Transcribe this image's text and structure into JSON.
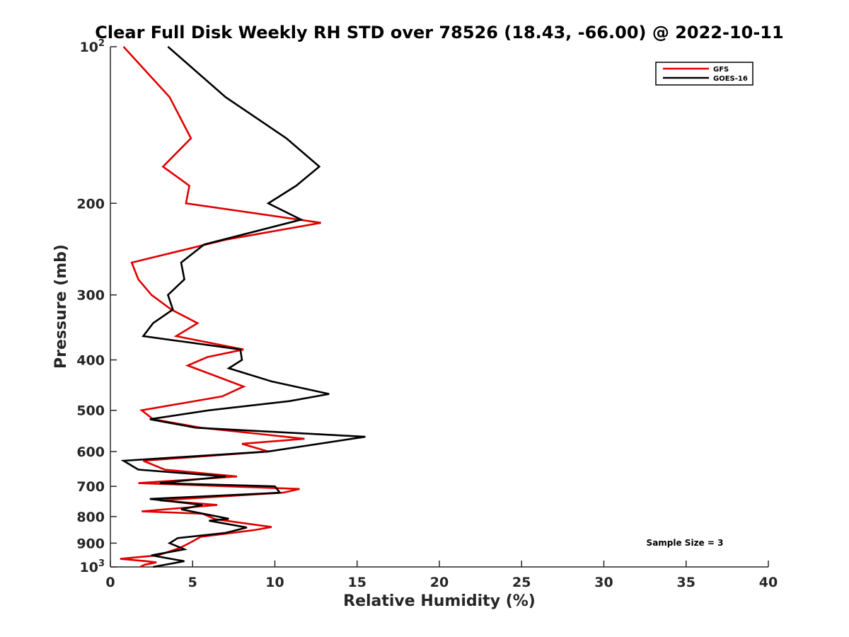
{
  "chart_data": {
    "type": "line",
    "title": "Clear Full Disk Weekly RH STD over 78526 (18.43, -66.00) @ 2022-10-11",
    "xlabel": "Relative Humidity (%)",
    "ylabel": "Pressure (mb)",
    "xlim": [
      0,
      40
    ],
    "ylim": [
      100,
      1000
    ],
    "y_scale": "log",
    "y_reversed": true,
    "grid": false,
    "legend_position": "top-right",
    "x_ticks": [
      0,
      5,
      10,
      15,
      20,
      25,
      30,
      35,
      40
    ],
    "y_ticks": [
      {
        "value": 100,
        "label": "10",
        "exp": "2"
      },
      {
        "value": 200,
        "label": "200"
      },
      {
        "value": 300,
        "label": "300"
      },
      {
        "value": 400,
        "label": "400"
      },
      {
        "value": 500,
        "label": "500"
      },
      {
        "value": 600,
        "label": "600"
      },
      {
        "value": 700,
        "label": "700"
      },
      {
        "value": 800,
        "label": "800"
      },
      {
        "value": 900,
        "label": "900"
      },
      {
        "value": 1000,
        "label": "10",
        "exp": "3"
      }
    ],
    "annotation": "Sample Size = 3",
    "series": [
      {
        "name": "GFS",
        "color": "#e00000",
        "points": [
          [
            0.8,
            100
          ],
          [
            3.6,
            125
          ],
          [
            4.9,
            150
          ],
          [
            3.2,
            170
          ],
          [
            4.8,
            185
          ],
          [
            4.6,
            200
          ],
          [
            12.8,
            218
          ],
          [
            7.0,
            235
          ],
          [
            1.3,
            260
          ],
          [
            1.7,
            280
          ],
          [
            2.5,
            300
          ],
          [
            3.7,
            320
          ],
          [
            5.3,
            340
          ],
          [
            4.0,
            360
          ],
          [
            8.1,
            382
          ],
          [
            5.9,
            395
          ],
          [
            4.7,
            410
          ],
          [
            8.1,
            450
          ],
          [
            6.8,
            470
          ],
          [
            1.9,
            500
          ],
          [
            2.6,
            520
          ],
          [
            5.5,
            540
          ],
          [
            11.8,
            567
          ],
          [
            8.0,
            580
          ],
          [
            9.6,
            600
          ],
          [
            2.0,
            625
          ],
          [
            3.3,
            650
          ],
          [
            7.7,
            670
          ],
          [
            1.7,
            690
          ],
          [
            11.5,
            708
          ],
          [
            10.5,
            720
          ],
          [
            3.0,
            745
          ],
          [
            6.5,
            760
          ],
          [
            1.9,
            782
          ],
          [
            5.6,
            790
          ],
          [
            6.4,
            810
          ],
          [
            9.8,
            838
          ],
          [
            8.7,
            850
          ],
          [
            5.5,
            875
          ],
          [
            4.8,
            900
          ],
          [
            4.2,
            920
          ],
          [
            2.9,
            950
          ],
          [
            0.6,
            965
          ],
          [
            2.2,
            975
          ],
          [
            2.8,
            980
          ],
          [
            2.1,
            990
          ],
          [
            1.8,
            1000
          ]
        ]
      },
      {
        "name": "GOES-16",
        "color": "#000000",
        "points": [
          [
            3.5,
            100
          ],
          [
            7.0,
            125
          ],
          [
            10.7,
            150
          ],
          [
            12.7,
            170
          ],
          [
            11.3,
            185
          ],
          [
            9.6,
            200
          ],
          [
            11.6,
            215
          ],
          [
            5.7,
            240
          ],
          [
            4.3,
            260
          ],
          [
            4.5,
            280
          ],
          [
            3.5,
            300
          ],
          [
            3.8,
            320
          ],
          [
            2.6,
            340
          ],
          [
            2.0,
            360
          ],
          [
            7.9,
            382
          ],
          [
            8.0,
            400
          ],
          [
            7.2,
            415
          ],
          [
            9.8,
            440
          ],
          [
            13.3,
            465
          ],
          [
            12.5,
            470
          ],
          [
            10.9,
            480
          ],
          [
            6.0,
            500
          ],
          [
            2.4,
            520
          ],
          [
            5.2,
            540
          ],
          [
            15.5,
            562
          ],
          [
            9.6,
            600
          ],
          [
            0.8,
            625
          ],
          [
            1.7,
            650
          ],
          [
            7.0,
            670
          ],
          [
            3.0,
            690
          ],
          [
            10.0,
            700
          ],
          [
            10.3,
            720
          ],
          [
            2.4,
            740
          ],
          [
            5.6,
            760
          ],
          [
            4.3,
            775
          ],
          [
            7.2,
            808
          ],
          [
            6.0,
            815
          ],
          [
            8.3,
            840
          ],
          [
            7.0,
            860
          ],
          [
            4.1,
            880
          ],
          [
            3.6,
            900
          ],
          [
            4.5,
            925
          ],
          [
            2.5,
            950
          ],
          [
            4.5,
            975
          ],
          [
            2.6,
            1000
          ]
        ]
      }
    ]
  }
}
